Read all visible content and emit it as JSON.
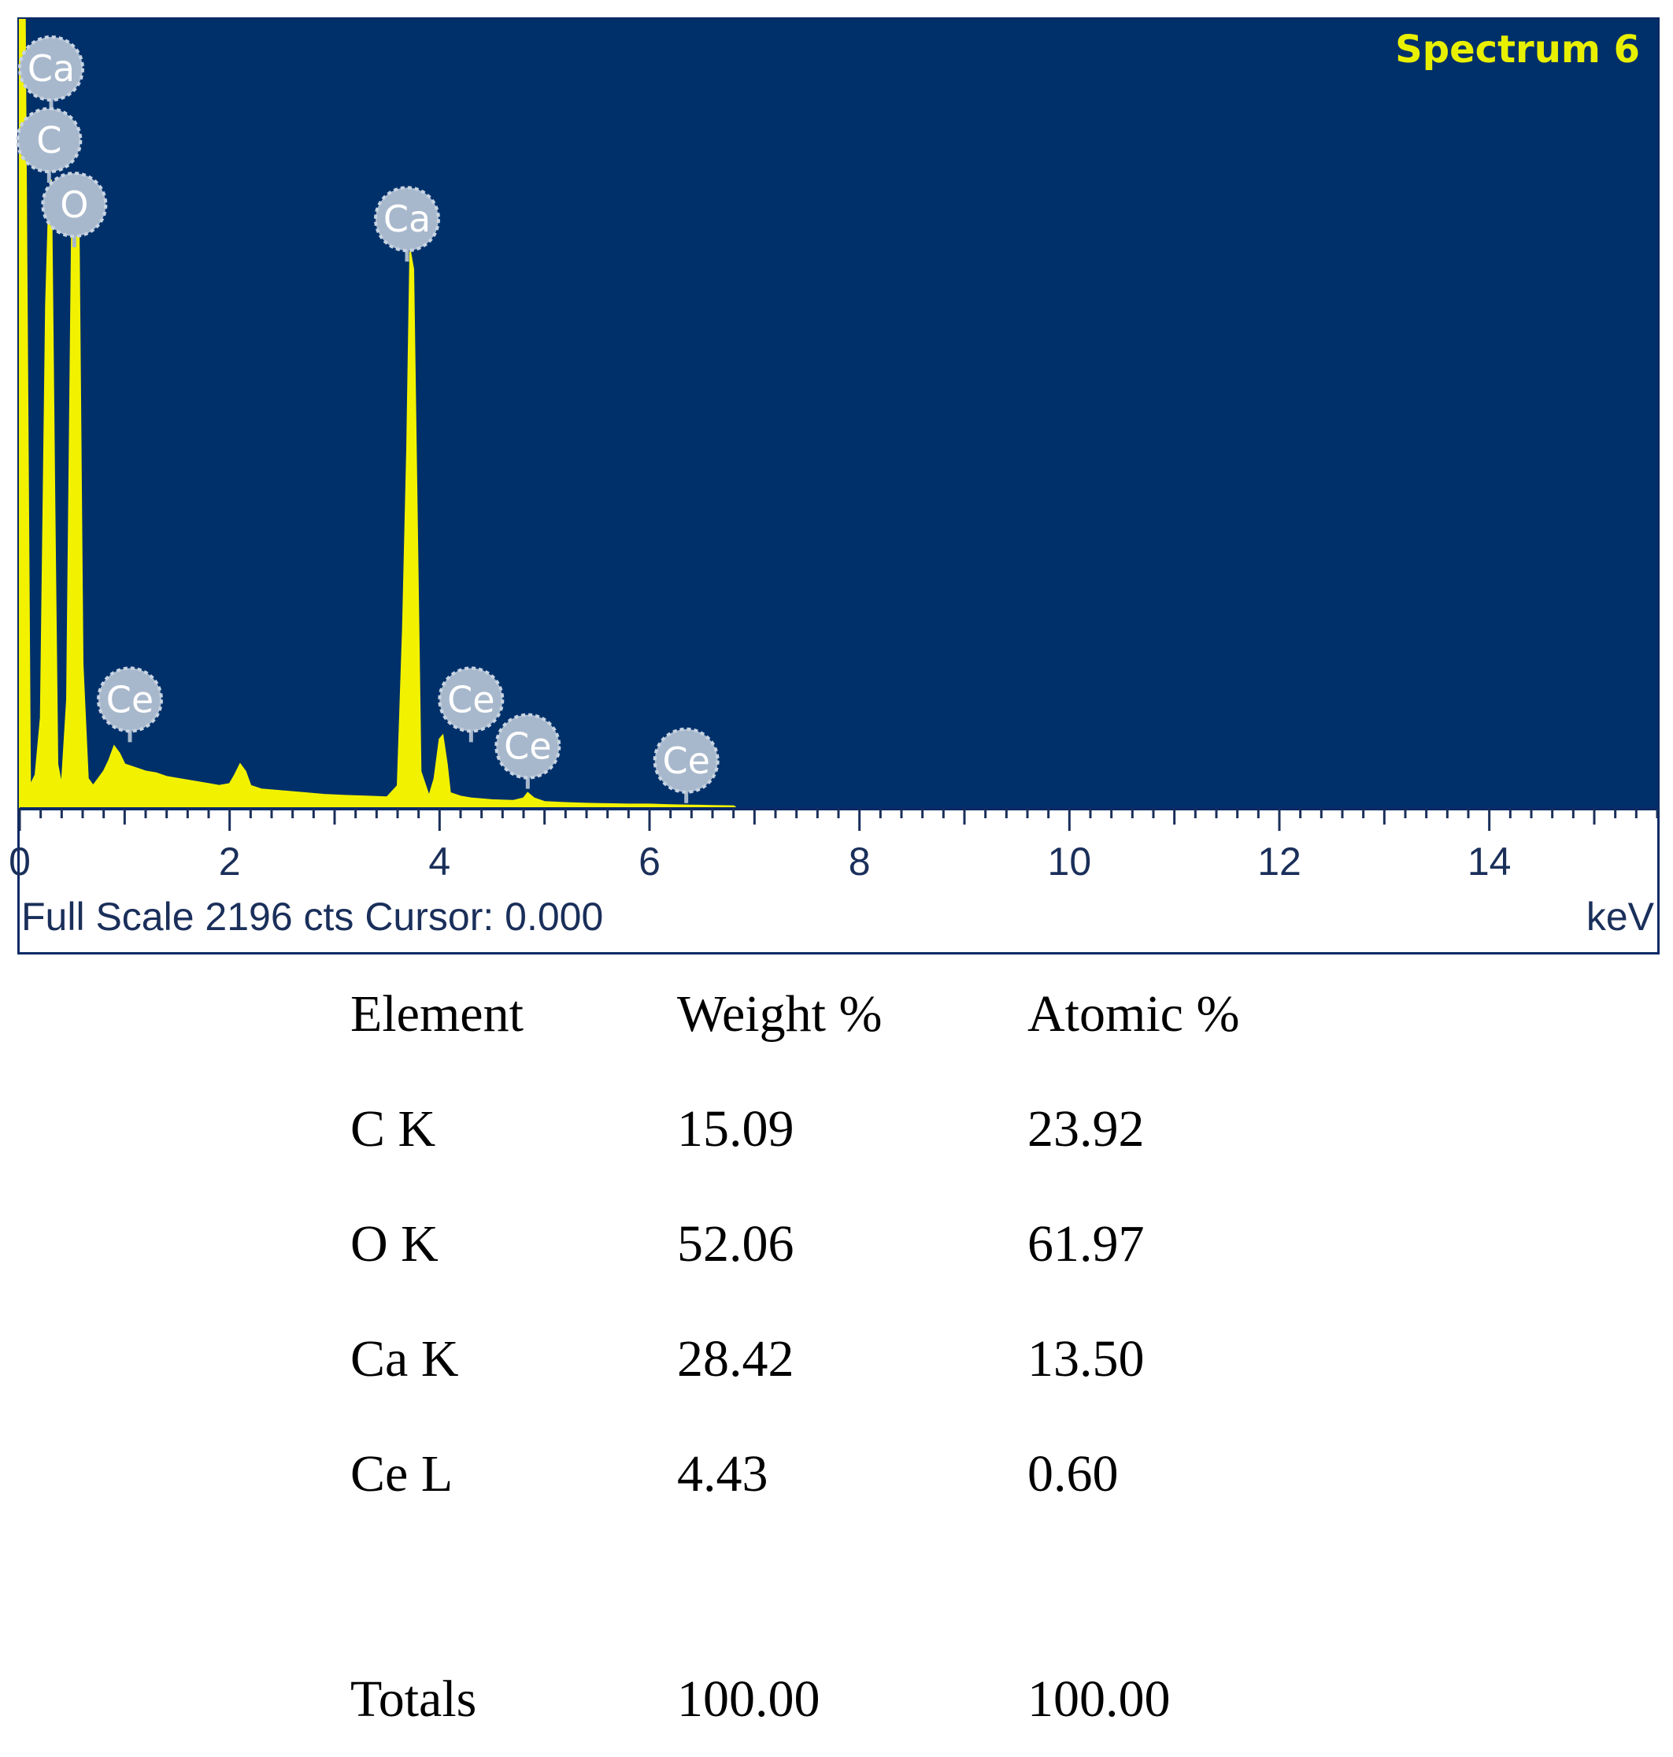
{
  "chart_data": {
    "type": "line",
    "title": "Spectrum 6",
    "xlabel": "keV",
    "xlim": [
      0,
      15.6
    ],
    "x_ticks": [
      0,
      2,
      4,
      6,
      8,
      10,
      12,
      14
    ],
    "x_tick_labels": [
      "0",
      "2",
      "4",
      "6",
      "8",
      "10",
      "12",
      "14"
    ],
    "ylim": [
      0,
      2196
    ],
    "footer": "Full Scale 2196 cts Cursor: 0.000",
    "series": [
      {
        "x": [
          0.0,
          0.05,
          0.1,
          0.15,
          0.2,
          0.25,
          0.28,
          0.3,
          0.33,
          0.36,
          0.4,
          0.45,
          0.5,
          0.53,
          0.56,
          0.6,
          0.65,
          0.7,
          0.75,
          0.8,
          0.85,
          0.9,
          0.95,
          1.0,
          1.1,
          1.2,
          1.3,
          1.4,
          1.5,
          1.6,
          1.7,
          1.8,
          1.9,
          2.0,
          2.05,
          2.1,
          2.15,
          2.2,
          2.3,
          2.5,
          2.7,
          2.9,
          3.1,
          3.3,
          3.5,
          3.6,
          3.65,
          3.69,
          3.72,
          3.75,
          3.78,
          3.82,
          3.9,
          3.95,
          4.0,
          4.03,
          4.07,
          4.1,
          4.2,
          4.3,
          4.5,
          4.7,
          4.8,
          4.84,
          4.9,
          5.0,
          5.2,
          5.4,
          5.6,
          5.8,
          6.0,
          6.2,
          6.4,
          6.6,
          6.8,
          6.82
        ],
        "y": [
          2196,
          2196,
          60,
          90,
          250,
          1400,
          1700,
          1750,
          900,
          120,
          60,
          300,
          1700,
          1750,
          1700,
          400,
          80,
          60,
          80,
          100,
          130,
          170,
          150,
          120,
          110,
          100,
          95,
          85,
          80,
          75,
          70,
          65,
          60,
          65,
          90,
          120,
          100,
          60,
          50,
          45,
          40,
          35,
          32,
          30,
          28,
          60,
          500,
          1000,
          1550,
          1500,
          900,
          100,
          30,
          80,
          190,
          200,
          120,
          40,
          30,
          25,
          20,
          18,
          25,
          40,
          25,
          15,
          12,
          10,
          9,
          8,
          8,
          6,
          5,
          4,
          3,
          0
        ]
      }
    ],
    "peak_labels": [
      {
        "text": "Ca",
        "x": 0.3,
        "y": 2060
      },
      {
        "text": "C",
        "x": 0.28,
        "y": 1860
      },
      {
        "text": "O",
        "x": 0.52,
        "y": 1680
      },
      {
        "text": "Ca",
        "x": 3.69,
        "y": 1640
      },
      {
        "text": "Ce",
        "x": 1.05,
        "y": 300
      },
      {
        "text": "Ce",
        "x": 4.3,
        "y": 300
      },
      {
        "text": "Ce",
        "x": 4.84,
        "y": 170
      },
      {
        "text": "Ce",
        "x": 6.35,
        "y": 130
      }
    ],
    "colors": {
      "background": "#00306a",
      "trace": "#f2f200",
      "title": "#e8f000",
      "marker": "#a8b8cc"
    }
  },
  "table": {
    "headers": [
      "Element",
      "Weight %",
      "Atomic %"
    ],
    "rows": [
      {
        "element": "C K",
        "weight": "15.09",
        "atomic": "23.92"
      },
      {
        "element": "O K",
        "weight": "52.06",
        "atomic": "61.97"
      },
      {
        "element": "Ca K",
        "weight": "28.42",
        "atomic": "13.50"
      },
      {
        "element": "Ce L",
        "weight": "4.43",
        "atomic": "0.60"
      }
    ],
    "totals": {
      "label": "Totals",
      "weight": "100.00",
      "atomic": "100.00"
    }
  }
}
